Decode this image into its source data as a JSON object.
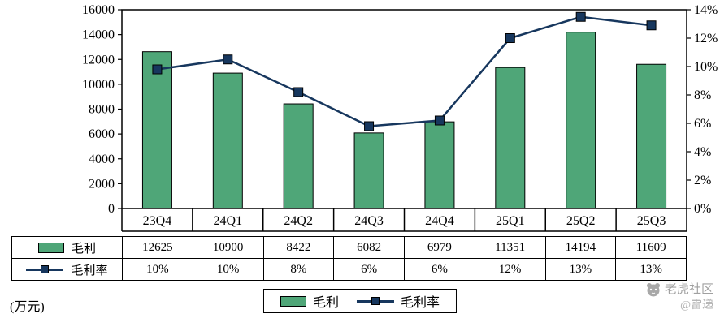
{
  "chart_data": {
    "type": "combo",
    "categories": [
      "23Q4",
      "24Q1",
      "24Q2",
      "24Q3",
      "24Q4",
      "25Q1",
      "25Q2",
      "25Q3"
    ],
    "series": [
      {
        "name": "毛利",
        "type": "bar",
        "axis": "left",
        "color": "#4FA678",
        "values": [
          12625,
          10900,
          8422,
          6082,
          6979,
          11351,
          14194,
          11609
        ]
      },
      {
        "name": "毛利率",
        "type": "line",
        "axis": "right",
        "color": "#17375E",
        "values": [
          9.8,
          10.5,
          8.2,
          5.8,
          6.2,
          12.0,
          13.5,
          12.9
        ],
        "labels": [
          "10%",
          "10%",
          "8%",
          "6%",
          "6%",
          "12%",
          "13%",
          "13%"
        ]
      }
    ],
    "left_axis": {
      "min": 0,
      "max": 16000,
      "step": 2000
    },
    "right_axis": {
      "min": 0,
      "max": 14,
      "step": 2,
      "suffix": "%"
    },
    "grid": false,
    "unit_label": "(万元)",
    "legend_position": "bottom-center",
    "legend": [
      {
        "label": "毛利"
      },
      {
        "label": "毛利率"
      }
    ]
  },
  "watermark": {
    "community": "老虎社区",
    "author": "@雷递"
  }
}
